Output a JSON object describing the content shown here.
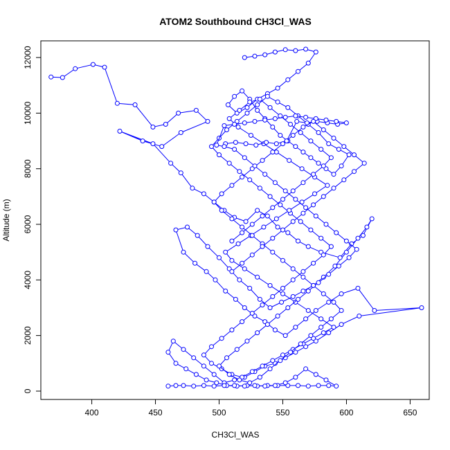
{
  "chart_data": {
    "type": "scatter",
    "title": "ATOM2 Southbound CH3Cl_WAS",
    "xlabel": "CH3Cl_WAS",
    "ylabel": "Altitude (m)",
    "xlim": [
      360,
      665
    ],
    "ylim": [
      -300,
      12600
    ],
    "xticks": [
      400,
      450,
      500,
      550,
      600,
      650
    ],
    "yticks": [
      0,
      2000,
      4000,
      6000,
      8000,
      10000,
      12000
    ],
    "grid": false,
    "colors": {
      "series": "#0000ff"
    },
    "series": [
      {
        "x": [
          368,
          377,
          387,
          401,
          410,
          420,
          434,
          448,
          458,
          468,
          482,
          491,
          470,
          455,
          440,
          422,
          448,
          462,
          470,
          479,
          488,
          496,
          504,
          512,
          521,
          530,
          538,
          546,
          554,
          562,
          570,
          580,
          595,
          604,
          613,
          620,
          616,
          609,
          600,
          591,
          582,
          574,
          566,
          558,
          549,
          540,
          532,
          524,
          516,
          508,
          500,
          491,
          483,
          475,
          466,
          472,
          481,
          490,
          497,
          505,
          513,
          520,
          528,
          536,
          544,
          552,
          560,
          568,
          576,
          586,
          596,
          609,
          622,
          659,
          610,
          596,
          586,
          576,
          568,
          560,
          552,
          544,
          536,
          528,
          520,
          512,
          504,
          496,
          488,
          480,
          472,
          464,
          460,
          466,
          474,
          482,
          490,
          498,
          506,
          514,
          522,
          530,
          538,
          546,
          554,
          562,
          570,
          578,
          586,
          592,
          584,
          576,
          568,
          560,
          552,
          544,
          536,
          528,
          520,
          512,
          504,
          496,
          488,
          480,
          472,
          466,
          460
        ],
        "y": [
          11300,
          11280,
          11600,
          11750,
          11650,
          10350,
          10300,
          9500,
          9600,
          10000,
          10100,
          9700,
          9300,
          8800,
          9000,
          9350,
          8900,
          8200,
          7850,
          7300,
          7100,
          6800,
          6500,
          6250,
          6100,
          6500,
          6300,
          5900,
          5700,
          5400,
          5200,
          5000,
          4800,
          5300,
          5600,
          6200,
          5900,
          5500,
          5000,
          4500,
          4100,
          3800,
          3600,
          3400,
          3200,
          3000,
          3300,
          3700,
          4000,
          4400,
          4800,
          5200,
          5600,
          5900,
          5800,
          5000,
          4600,
          4300,
          4000,
          3600,
          3300,
          3000,
          2700,
          2500,
          2200,
          2000,
          2300,
          2600,
          2900,
          3200,
          3500,
          3700,
          2900,
          3000,
          2700,
          2400,
          2100,
          1800,
          1600,
          1400,
          1200,
          1000,
          900,
          700,
          500,
          400,
          300,
          600,
          900,
          1200,
          1500,
          1800,
          1400,
          1000,
          800,
          600,
          400,
          300,
          200,
          180,
          200,
          180,
          200,
          200,
          200,
          200,
          180,
          200,
          200,
          180,
          400,
          600,
          800,
          500,
          300,
          200,
          180,
          200,
          180,
          200,
          200,
          180,
          200,
          180,
          200,
          200,
          180
        ]
      },
      {
        "x": [
          520,
          528,
          536,
          544,
          552,
          560,
          568,
          576,
          570,
          562,
          554,
          546,
          538,
          530,
          522,
          514,
          507,
          512,
          518,
          524,
          530,
          536,
          542,
          548,
          554,
          560,
          566,
          572,
          578,
          584,
          590,
          596,
          602,
          594,
          586,
          578,
          570,
          562,
          554,
          546,
          538,
          530,
          522,
          514,
          506,
          500,
          494,
          500,
          508,
          516,
          524,
          532,
          540,
          548,
          556,
          564,
          572,
          580,
          588,
          582,
          574,
          566,
          558,
          550,
          542,
          534,
          526,
          518,
          510,
          502,
          494,
          488,
          494,
          502,
          510,
          518,
          526,
          534,
          542,
          550,
          558,
          566,
          574,
          582,
          590,
          580,
          570,
          560,
          550,
          540,
          530,
          520,
          510,
          505,
          515,
          525,
          535,
          545,
          555,
          565,
          575,
          585,
          575,
          565,
          555,
          545,
          535,
          525,
          515,
          508,
          516,
          524,
          532,
          540,
          548,
          556,
          564,
          572,
          580,
          588,
          582,
          574,
          566,
          558,
          550,
          542,
          534,
          526,
          518,
          510
        ],
        "y": [
          12000,
          12050,
          12100,
          12200,
          12280,
          12250,
          12300,
          12200,
          11800,
          11500,
          11200,
          10900,
          10700,
          10500,
          10200,
          10000,
          10300,
          10600,
          10800,
          10500,
          10100,
          9800,
          9500,
          9200,
          9000,
          8800,
          8600,
          8400,
          8200,
          8000,
          7800,
          8100,
          8500,
          8700,
          8900,
          9300,
          9600,
          9900,
          10200,
          10400,
          10600,
          10300,
          10000,
          9700,
          9400,
          9100,
          8800,
          8500,
          8200,
          7900,
          7600,
          7300,
          7000,
          6700,
          6400,
          6100,
          5800,
          5500,
          5200,
          4900,
          4600,
          4300,
          4000,
          3700,
          3400,
          3100,
          2800,
          2500,
          2200,
          1900,
          1600,
          1300,
          1000,
          800,
          600,
          500,
          700,
          900,
          1100,
          1300,
          1500,
          1700,
          1900,
          2100,
          2300,
          2600,
          2900,
          3200,
          3500,
          3800,
          4100,
          4400,
          4700,
          5000,
          5300,
          5600,
          5900,
          6200,
          6500,
          6800,
          7100,
          7400,
          7700,
          8000,
          8300,
          8600,
          8900,
          9200,
          9500,
          9800,
          10100,
          10400,
          10500,
          10200,
          9900,
          9600,
          9300,
          9000,
          8700,
          8400,
          8100,
          7800,
          7500,
          7200,
          6900,
          6600,
          6300,
          6000,
          5700,
          5400
        ]
      },
      {
        "x": [
          505,
          513,
          521,
          529,
          537,
          545,
          553,
          561,
          569,
          577,
          585,
          593,
          600,
          592,
          584,
          576,
          568,
          560,
          552,
          544,
          536,
          528,
          520,
          512,
          504,
          498,
          504,
          512,
          520,
          528,
          536,
          544,
          552,
          560,
          568,
          576,
          584,
          592,
          600,
          608,
          602,
          594,
          586,
          578,
          570,
          562,
          554,
          546,
          538,
          530,
          522,
          514,
          506,
          500,
          508,
          516,
          524,
          532,
          540,
          548,
          556,
          564,
          572,
          580,
          588,
          596,
          590,
          582,
          574,
          566,
          558,
          550,
          542,
          534,
          526,
          518,
          510,
          502,
          496,
          502,
          510,
          518,
          526,
          534,
          542,
          550,
          558,
          566,
          574,
          582,
          590,
          598,
          606,
          614,
          606,
          598,
          590,
          582,
          574,
          566,
          558,
          550,
          542,
          534,
          526,
          518,
          510
        ],
        "y": [
          8900,
          8950,
          8900,
          8850,
          8950,
          8900,
          9000,
          9700,
          9650,
          9700,
          9650,
          9600,
          9650,
          9700,
          9750,
          9800,
          9850,
          9900,
          9850,
          9800,
          9750,
          9700,
          9650,
          9600,
          9550,
          8850,
          8800,
          8700,
          8400,
          8100,
          7800,
          7500,
          7200,
          6900,
          6600,
          6300,
          6000,
          5700,
          5400,
          5100,
          4800,
          4500,
          4200,
          3900,
          3600,
          3300,
          3000,
          2700,
          2400,
          2100,
          1800,
          1500,
          1200,
          900,
          600,
          400,
          300,
          500,
          800,
          1100,
          1400,
          1700,
          2000,
          2300,
          2600,
          2900,
          3200,
          3500,
          3800,
          4100,
          4400,
          4700,
          5000,
          5300,
          5600,
          5900,
          6200,
          6500,
          6800,
          7100,
          7400,
          7700,
          8000,
          8300,
          8600,
          8900,
          9200,
          9500,
          9700,
          9400,
          9100,
          8800,
          8500,
          8200,
          7900,
          7600,
          7300,
          7000,
          6700,
          6400,
          6100,
          5800,
          5500,
          5200,
          4900,
          4600,
          4300
        ]
      }
    ]
  }
}
